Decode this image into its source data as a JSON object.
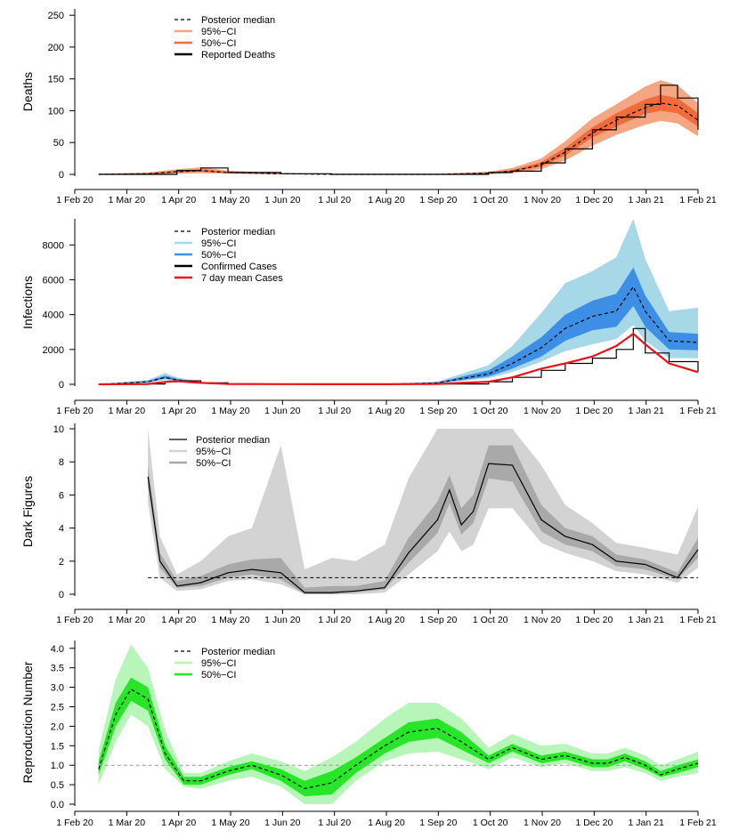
{
  "x_ticks": [
    "1 Feb 20",
    "1 Mar 20",
    "1 Apr 20",
    "1 May 20",
    "1 Jun 20",
    "1 Jul 20",
    "1 Aug 20",
    "1 Sep 20",
    "1 Oct 20",
    "1 Nov 20",
    "1 Dec 20",
    "1 Jan 21",
    "1 Feb 21"
  ],
  "chart_data": [
    {
      "type": "line",
      "ylabel": "Deaths",
      "ylim": [
        0,
        260
      ],
      "yticks": [
        0,
        50,
        100,
        150,
        200,
        250
      ],
      "legend_position": "top-left",
      "legend": [
        {
          "label": "Posterior median",
          "style": "dashed",
          "color": "#000000"
        },
        {
          "label": "95%−CI",
          "style": "band",
          "color": "#f4a582"
        },
        {
          "label": "50%−CI",
          "style": "band",
          "color": "#f26b3a"
        },
        {
          "label": "Reported Deaths",
          "style": "step",
          "color": "#000000"
        }
      ],
      "x": [
        "2020-02-15",
        "2020-03-15",
        "2020-04-01",
        "2020-04-15",
        "2020-05-01",
        "2020-06-01",
        "2020-07-01",
        "2020-08-01",
        "2020-09-01",
        "2020-10-01",
        "2020-10-15",
        "2020-11-01",
        "2020-11-15",
        "2020-12-01",
        "2020-12-15",
        "2021-01-01",
        "2021-01-10",
        "2021-01-20",
        "2021-02-01"
      ],
      "series": [
        {
          "name": "Posterior median",
          "values": [
            0,
            1,
            4,
            6,
            3,
            1,
            0,
            0,
            0,
            2,
            5,
            15,
            35,
            65,
            85,
            105,
            112,
            108,
            85
          ]
        },
        {
          "name": "95%−CI lower",
          "values": [
            0,
            0,
            1,
            2,
            1,
            0,
            0,
            0,
            0,
            0,
            2,
            8,
            22,
            45,
            62,
            78,
            84,
            80,
            60
          ]
        },
        {
          "name": "95%−CI upper",
          "values": [
            1,
            3,
            8,
            11,
            6,
            2,
            1,
            1,
            1,
            4,
            10,
            25,
            52,
            88,
            110,
            138,
            148,
            140,
            112
          ]
        },
        {
          "name": "50%−CI lower",
          "values": [
            0,
            0,
            3,
            4,
            2,
            0,
            0,
            0,
            0,
            1,
            4,
            12,
            30,
            58,
            75,
            95,
            100,
            96,
            75
          ]
        },
        {
          "name": "50%−CI upper",
          "values": [
            0,
            2,
            6,
            8,
            4,
            1,
            0,
            0,
            0,
            3,
            7,
            19,
            42,
            74,
            96,
            118,
            125,
            120,
            96
          ]
        },
        {
          "name": "Reported Deaths",
          "values": [
            0,
            0,
            6,
            10,
            3,
            1,
            0,
            0,
            0,
            3,
            5,
            18,
            40,
            70,
            90,
            110,
            140,
            120,
            70
          ]
        }
      ]
    },
    {
      "type": "line",
      "ylabel": "Infections",
      "ylim": [
        0,
        9500
      ],
      "yticks": [
        0,
        2000,
        4000,
        6000,
        8000
      ],
      "legend_position": "top-left",
      "legend": [
        {
          "label": "Posterior median",
          "style": "dashed",
          "color": "#000000"
        },
        {
          "label": "95%−CI",
          "style": "band",
          "color": "#a6d8e7"
        },
        {
          "label": "50%−CI",
          "style": "band",
          "color": "#3d8fe6"
        },
        {
          "label": "Confirmed Cases",
          "style": "step",
          "color": "#000000"
        },
        {
          "label": "7 day mean Cases",
          "style": "line",
          "color": "#e8141e"
        }
      ],
      "x": [
        "2020-02-15",
        "2020-03-15",
        "2020-03-25",
        "2020-04-01",
        "2020-04-15",
        "2020-05-01",
        "2020-06-01",
        "2020-07-01",
        "2020-08-01",
        "2020-09-01",
        "2020-10-01",
        "2020-10-15",
        "2020-11-01",
        "2020-11-15",
        "2020-12-01",
        "2020-12-15",
        "2020-12-25",
        "2021-01-01",
        "2021-01-15",
        "2021-02-01"
      ],
      "series": [
        {
          "name": "Posterior median",
          "values": [
            0,
            150,
            400,
            250,
            80,
            20,
            10,
            5,
            5,
            80,
            600,
            1200,
            2100,
            3200,
            3900,
            4200,
            5600,
            4200,
            2500,
            2400
          ]
        },
        {
          "name": "95%−CI lower",
          "values": [
            0,
            80,
            250,
            150,
            40,
            10,
            5,
            3,
            3,
            40,
            350,
            700,
            1300,
            1900,
            2300,
            2600,
            3400,
            2500,
            1500,
            1500
          ]
        },
        {
          "name": "95%−CI upper",
          "values": [
            0,
            250,
            650,
            400,
            150,
            40,
            20,
            10,
            10,
            160,
            1100,
            2200,
            4100,
            5800,
            6500,
            7300,
            9500,
            7200,
            4200,
            4400
          ]
        },
        {
          "name": "50%−CI lower",
          "values": [
            0,
            120,
            330,
            200,
            60,
            15,
            7,
            4,
            4,
            60,
            450,
            900,
            1600,
            2500,
            3100,
            3300,
            4500,
            3300,
            2000,
            1950
          ]
        },
        {
          "name": "50%−CI upper",
          "values": [
            0,
            190,
            500,
            320,
            110,
            30,
            15,
            8,
            8,
            110,
            800,
            1600,
            2700,
            4000,
            4800,
            5200,
            6700,
            5100,
            3000,
            2900
          ]
        },
        {
          "name": "Confirmed Cases",
          "values": [
            0,
            20,
            150,
            200,
            80,
            20,
            10,
            5,
            5,
            20,
            150,
            400,
            800,
            1200,
            1500,
            2000,
            3200,
            1800,
            1300,
            700
          ]
        },
        {
          "name": "7 day mean Cases",
          "values": [
            0,
            20,
            140,
            180,
            80,
            20,
            10,
            5,
            5,
            20,
            150,
            400,
            900,
            1200,
            1600,
            2200,
            2900,
            2300,
            1200,
            700
          ]
        }
      ]
    },
    {
      "type": "line",
      "ylabel": "Dark Figures",
      "ylim": [
        0,
        10
      ],
      "yticks": [
        0,
        2,
        4,
        6,
        8,
        10
      ],
      "legend_position": "top-left",
      "legend": [
        {
          "label": "Posterior median",
          "style": "line",
          "color": "#000000"
        },
        {
          "label": "95%−CI",
          "style": "band",
          "color": "#d3d3d3"
        },
        {
          "label": "50%−CI",
          "style": "band",
          "color": "#a9a9a9"
        }
      ],
      "reference_line": 1,
      "x": [
        "2020-03-15",
        "2020-03-22",
        "2020-04-01",
        "2020-04-15",
        "2020-05-01",
        "2020-05-15",
        "2020-06-01",
        "2020-06-15",
        "2020-07-01",
        "2020-07-15",
        "2020-08-01",
        "2020-08-15",
        "2020-09-01",
        "2020-09-08",
        "2020-09-15",
        "2020-09-22",
        "2020-10-01",
        "2020-10-15",
        "2020-11-01",
        "2020-11-15",
        "2020-12-01",
        "2020-12-15",
        "2021-01-01",
        "2021-01-20",
        "2021-02-01"
      ],
      "series": [
        {
          "name": "Posterior median",
          "values": [
            7.1,
            2.0,
            0.5,
            0.7,
            1.3,
            1.5,
            1.3,
            0.1,
            0.1,
            0.2,
            0.4,
            2.5,
            4.5,
            6.3,
            4.2,
            5.0,
            7.9,
            7.8,
            4.5,
            3.5,
            3.0,
            2.0,
            1.8,
            1.0,
            2.7
          ]
        },
        {
          "name": "95%−CI lower",
          "values": [
            5.5,
            1.0,
            0.2,
            0.3,
            0.8,
            0.9,
            0.6,
            0.0,
            0.0,
            0.0,
            0.1,
            1.2,
            2.6,
            3.8,
            2.6,
            3.0,
            5.2,
            5.2,
            3.1,
            2.5,
            2.0,
            1.4,
            1.2,
            0.7,
            1.6
          ]
        },
        {
          "name": "95%−CI upper",
          "values": [
            10.0,
            3.5,
            1.2,
            2.0,
            3.5,
            4.0,
            9.0,
            1.5,
            2.2,
            2.0,
            3.0,
            7.0,
            10.0,
            10.0,
            10.0,
            10.0,
            10.0,
            10.0,
            7.8,
            5.4,
            4.3,
            3.1,
            2.8,
            2.4,
            5.3
          ]
        },
        {
          "name": "50%−CI lower",
          "values": [
            6.5,
            1.6,
            0.4,
            0.5,
            1.0,
            1.2,
            0.9,
            0.0,
            0.0,
            0.1,
            0.3,
            1.9,
            3.7,
            5.5,
            3.6,
            4.3,
            7.0,
            6.8,
            3.8,
            3.0,
            2.6,
            1.7,
            1.5,
            0.9,
            2.2
          ]
        },
        {
          "name": "50%−CI upper",
          "values": [
            7.8,
            2.5,
            0.8,
            1.1,
            1.8,
            2.1,
            2.2,
            0.4,
            0.5,
            0.5,
            0.8,
            3.4,
            5.6,
            7.2,
            5.2,
            6.0,
            9.0,
            9.0,
            5.4,
            4.0,
            3.5,
            2.4,
            2.1,
            1.3,
            3.4
          ]
        }
      ]
    },
    {
      "type": "line",
      "ylabel": "Reproduction Number",
      "ylim": [
        0,
        4.2
      ],
      "yticks": [
        0.0,
        0.5,
        1.0,
        1.5,
        2.0,
        2.5,
        3.0,
        3.5,
        4.0
      ],
      "legend_position": "top-left",
      "legend": [
        {
          "label": "Posterior median",
          "style": "dashed",
          "color": "#000000"
        },
        {
          "label": "95%−CI",
          "style": "band",
          "color": "#b8f5b8"
        },
        {
          "label": "50%−CI",
          "style": "band",
          "color": "#27e627"
        }
      ],
      "reference_line": 1,
      "x": [
        "2020-02-15",
        "2020-02-25",
        "2020-03-05",
        "2020-03-15",
        "2020-03-25",
        "2020-04-05",
        "2020-04-15",
        "2020-05-01",
        "2020-05-15",
        "2020-06-01",
        "2020-06-15",
        "2020-07-01",
        "2020-07-15",
        "2020-08-01",
        "2020-08-15",
        "2020-09-01",
        "2020-09-15",
        "2020-10-01",
        "2020-10-15",
        "2020-11-01",
        "2020-11-15",
        "2020-12-01",
        "2020-12-10",
        "2020-12-20",
        "2021-01-01",
        "2021-01-10",
        "2021-01-20",
        "2021-02-01"
      ],
      "series": [
        {
          "name": "Posterior median",
          "values": [
            0.9,
            2.3,
            2.95,
            2.7,
            1.3,
            0.6,
            0.6,
            0.85,
            1.0,
            0.75,
            0.4,
            0.55,
            1.0,
            1.5,
            1.85,
            1.95,
            1.6,
            1.15,
            1.45,
            1.15,
            1.25,
            1.05,
            1.05,
            1.2,
            1.0,
            0.75,
            0.9,
            1.05
          ]
        },
        {
          "name": "95%−CI lower",
          "values": [
            0.5,
            1.6,
            2.3,
            2.0,
            0.9,
            0.45,
            0.4,
            0.6,
            0.7,
            0.45,
            0.0,
            0.0,
            0.6,
            1.1,
            1.3,
            1.35,
            1.15,
            0.9,
            1.2,
            0.95,
            1.05,
            0.85,
            0.85,
            0.95,
            0.8,
            0.6,
            0.7,
            0.8
          ]
        },
        {
          "name": "95%−CI upper",
          "values": [
            1.4,
            3.2,
            4.1,
            3.5,
            1.9,
            0.8,
            0.8,
            1.1,
            1.3,
            1.1,
            0.85,
            1.2,
            1.6,
            2.2,
            2.6,
            2.6,
            2.2,
            1.45,
            1.8,
            1.5,
            1.55,
            1.3,
            1.3,
            1.45,
            1.25,
            1.0,
            1.15,
            1.35
          ]
        },
        {
          "name": "50%−CI lower",
          "values": [
            0.75,
            2.0,
            2.65,
            2.4,
            1.15,
            0.5,
            0.5,
            0.75,
            0.9,
            0.6,
            0.2,
            0.25,
            0.8,
            1.3,
            1.6,
            1.7,
            1.4,
            1.05,
            1.35,
            1.05,
            1.15,
            0.95,
            0.95,
            1.1,
            0.9,
            0.7,
            0.8,
            0.95
          ]
        },
        {
          "name": "50%−CI upper",
          "values": [
            1.1,
            2.6,
            3.25,
            3.0,
            1.5,
            0.7,
            0.7,
            0.95,
            1.1,
            0.9,
            0.6,
            0.85,
            1.2,
            1.7,
            2.1,
            2.2,
            1.85,
            1.25,
            1.55,
            1.25,
            1.35,
            1.15,
            1.15,
            1.3,
            1.1,
            0.85,
            1.0,
            1.15
          ]
        }
      ]
    }
  ]
}
